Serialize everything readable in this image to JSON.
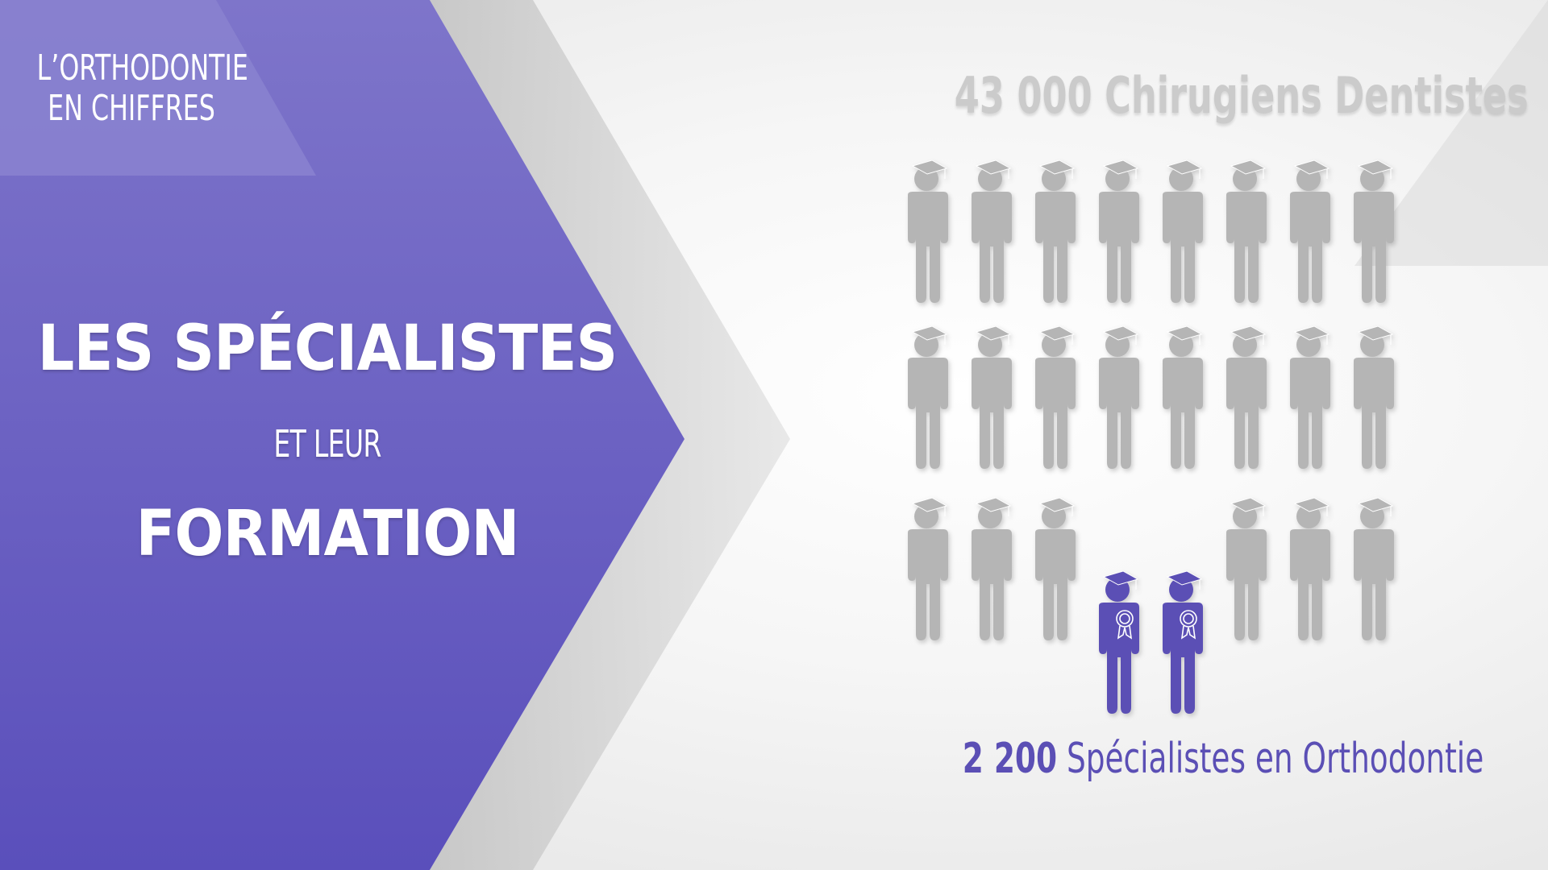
{
  "corner_label": {
    "line1": "L’ORTHODONTIE",
    "line2": "EN CHIFFRES"
  },
  "title": {
    "line1": "LES SPÉCIALISTES",
    "line2": "ET LEUR",
    "line3": "FORMATION"
  },
  "dentists_label": "43 000 Chirugiens Dentistes",
  "specialists_label": {
    "number": "2 200",
    "text": " Spécialistes en Orthodontie"
  },
  "colors": {
    "accent": "#6a5fc1",
    "figure_gray": "#b5b5b5",
    "specialist": "#5b4fb5"
  },
  "people": {
    "rows": 3,
    "cols": 8,
    "specialist_cells": [
      [
        2,
        3
      ],
      [
        2,
        4
      ]
    ],
    "icon": "graduate-person-icon",
    "specialist_icon": "graduate-award-person-icon"
  }
}
